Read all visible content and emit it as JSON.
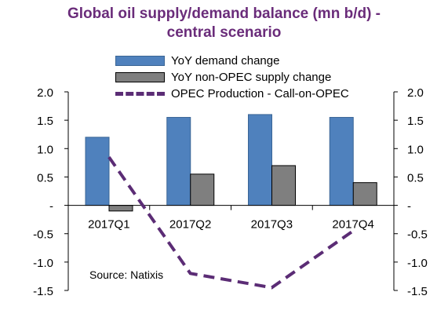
{
  "chart_data": {
    "type": "bar",
    "title": "Global oil supply/demand balance (mn b/d) - central scenario",
    "title_lines": [
      "Global oil supply/demand balance (mn b/d) -",
      "central scenario"
    ],
    "categories": [
      "2017Q1",
      "2017Q2",
      "2017Q3",
      "2017Q4"
    ],
    "series": [
      {
        "name": "YoY demand change",
        "type": "bar",
        "color": "#4f81bd",
        "values": [
          1.2,
          1.55,
          1.6,
          1.55
        ]
      },
      {
        "name": "YoY non-OPEC supply change",
        "type": "bar",
        "color": "#7f7f7f",
        "values": [
          -0.1,
          0.55,
          0.7,
          0.4
        ]
      },
      {
        "name": "OPEC Production - Call-on-OPEC",
        "type": "line",
        "style": "dashed",
        "color": "#5b2c75",
        "values": [
          0.85,
          -1.2,
          -1.45,
          -0.45
        ]
      }
    ],
    "ylim": [
      -1.5,
      2.0
    ],
    "yticks": [
      "2.0",
      "1.5",
      "1.0",
      "0.5",
      "-",
      "-0.5",
      "-1.0",
      "-1.5"
    ],
    "ytick_values": [
      2.0,
      1.5,
      1.0,
      0.5,
      0,
      -0.5,
      -1.0,
      -1.5
    ],
    "y2ticks": [
      "2.0",
      "1.5",
      "1.0",
      "0.5",
      "-",
      "-0.5",
      "-1.0",
      "-1.5"
    ],
    "legend_position": "top",
    "grid": false,
    "annotation": "Source: Natixis"
  }
}
